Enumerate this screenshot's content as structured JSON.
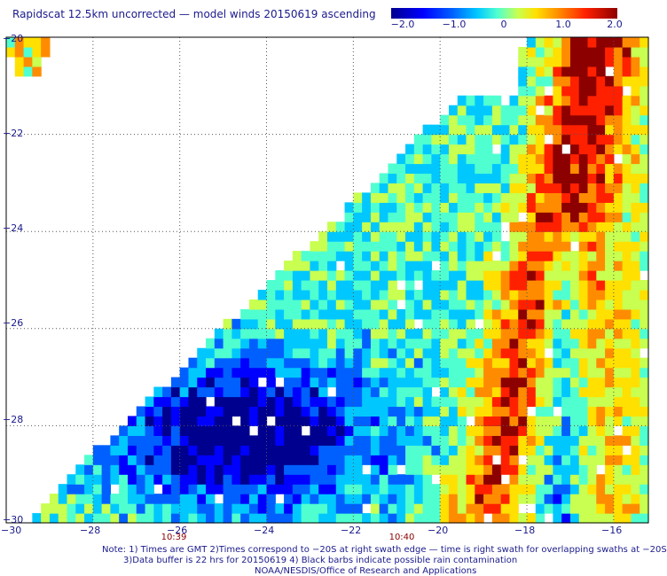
{
  "title": "Rapidscat 12.5km uncorrected — model winds 20150619 ascending",
  "colorbar": {
    "labels": [
      "−2.0",
      "−1.0",
      "0",
      "1.0",
      "2.0"
    ],
    "values": [
      -2.0,
      -1.0,
      0,
      1.0,
      2.0
    ],
    "colors": [
      "#00008f",
      "#0000ff",
      "#0060ff",
      "#00c8ff",
      "#50ffd0",
      "#c8ff50",
      "#ffe000",
      "#ff8c00",
      "#ff2000",
      "#8c0000"
    ]
  },
  "map": {
    "lon_range": [
      -30,
      -15.2
    ],
    "lat_range": [
      -30,
      -20
    ],
    "x_ticks": [
      {
        "value": -30,
        "label": "−30"
      },
      {
        "value": -28,
        "label": "−28"
      },
      {
        "value": -26,
        "label": "−26"
      },
      {
        "value": -24,
        "label": "−24"
      },
      {
        "value": -22,
        "label": "−22"
      },
      {
        "value": -20,
        "label": "−20"
      },
      {
        "value": -18,
        "label": "−18"
      },
      {
        "value": -16,
        "label": "−16"
      }
    ],
    "y_ticks": [
      {
        "value": -20,
        "label": "−20"
      },
      {
        "value": -22,
        "label": "−22"
      },
      {
        "value": -24,
        "label": "−24"
      },
      {
        "value": -26,
        "label": "−26"
      },
      {
        "value": -28,
        "label": "−28"
      },
      {
        "value": -30,
        "label": "−30"
      }
    ],
    "grid": "dotted",
    "swath_times": [
      {
        "label": "10:39",
        "lon": -26
      },
      {
        "label": "10:40",
        "lon": -21
      }
    ]
  },
  "notes": [
    "Note: 1) Times are GMT 2)Times correspond to −20S at right swath edge — time is right swath for overlapping swaths at −20S",
    "3)Data buffer is 22 hrs for 20150619 4) Black barbs indicate possible rain contamination",
    "NOAA/NESDIS/Office of Research and Applications"
  ]
}
